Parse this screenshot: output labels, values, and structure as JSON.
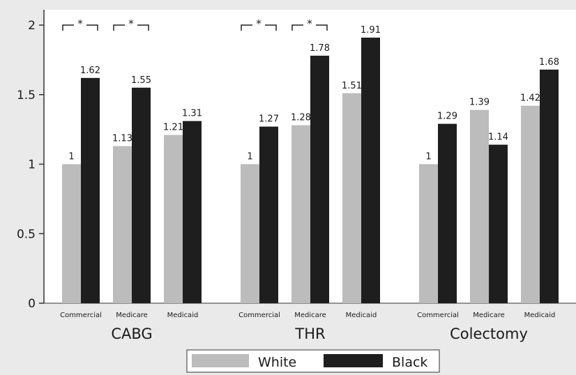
{
  "chart_data": {
    "type": "bar",
    "title": "",
    "xlabel": "",
    "ylabel": "",
    "ylim": [
      0,
      2
    ],
    "yticks": [
      "0",
      "0.5",
      "1",
      "1.5",
      "2"
    ],
    "grid": false,
    "legend_placement": "bottom",
    "groups": [
      {
        "name": "CABG",
        "categories": [
          "Commercial",
          "Medicare",
          "Medicaid"
        ],
        "labels": {
          "white": [
            "1",
            "1.13",
            "1.21"
          ],
          "black": [
            "1.62",
            "1.55",
            "1.31"
          ]
        },
        "significant": [
          true,
          true,
          false
        ]
      },
      {
        "name": "THR",
        "categories": [
          "Commercial",
          "Medicare",
          "Medicaid"
        ],
        "labels": {
          "white": [
            "1",
            "1.28",
            "1.51"
          ],
          "black": [
            "1.27",
            "1.78",
            "1.91"
          ]
        },
        "significant": [
          true,
          true,
          false
        ]
      },
      {
        "name": "Colectomy",
        "categories": [
          "Commercial",
          "Medicare",
          "Medicaid"
        ],
        "labels": {
          "white": [
            "1",
            "1.39",
            "1.42"
          ],
          "black": [
            "1.29",
            "1.14",
            "1.68"
          ]
        },
        "significant": [
          false,
          false,
          false
        ]
      }
    ],
    "series": [
      {
        "name": "White",
        "color": "#bcbcbc",
        "values": [
          1,
          1.13,
          1.21,
          1,
          1.28,
          1.51,
          1,
          1.39,
          1.42
        ]
      },
      {
        "name": "Black",
        "color": "#1e1e1e",
        "values": [
          1.62,
          1.55,
          1.31,
          1.27,
          1.78,
          1.91,
          1.29,
          1.14,
          1.68
        ]
      }
    ],
    "significance_marker": "*"
  }
}
